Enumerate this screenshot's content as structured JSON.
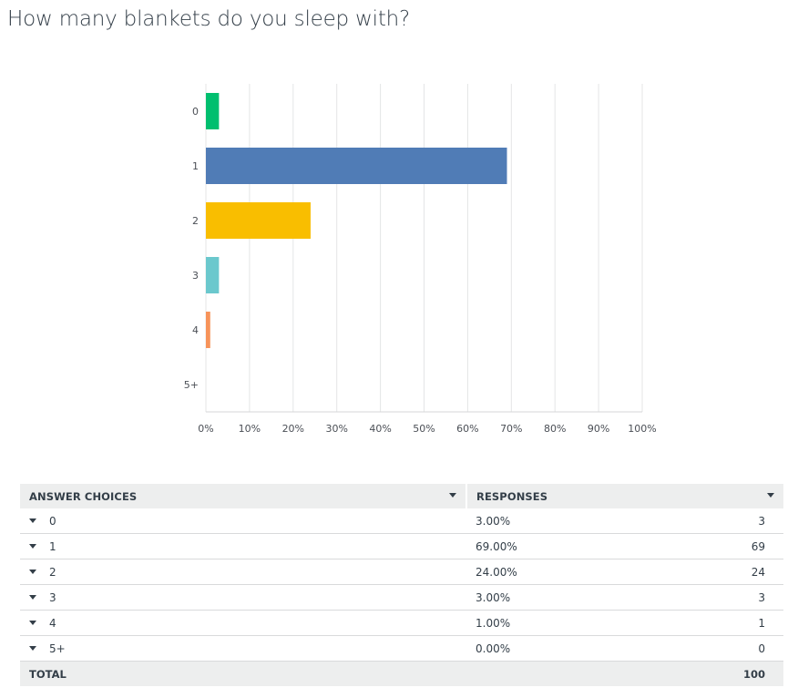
{
  "question": "How many blankets do you sleep with?",
  "chart_data": {
    "type": "bar",
    "orientation": "horizontal",
    "categories": [
      "0",
      "1",
      "2",
      "3",
      "4",
      "5+"
    ],
    "values": [
      3,
      69,
      24,
      3,
      1,
      0
    ],
    "colors": [
      "#00bf6f",
      "#507cb6",
      "#f9be00",
      "#6bc8cd",
      "#f7935a",
      "#9d9d9d"
    ],
    "xlim": [
      0,
      100
    ],
    "x_ticks": [
      "0%",
      "10%",
      "20%",
      "30%",
      "40%",
      "50%",
      "60%",
      "70%",
      "80%",
      "90%",
      "100%"
    ],
    "grid": true,
    "gridline_color": "#e4e5e6"
  },
  "table": {
    "headers": {
      "choices": "ANSWER CHOICES",
      "responses": "RESPONSES"
    },
    "rows": [
      {
        "choice": "0",
        "percent": "3.00%",
        "count": "3"
      },
      {
        "choice": "1",
        "percent": "69.00%",
        "count": "69"
      },
      {
        "choice": "2",
        "percent": "24.00%",
        "count": "24"
      },
      {
        "choice": "3",
        "percent": "3.00%",
        "count": "3"
      },
      {
        "choice": "4",
        "percent": "1.00%",
        "count": "1"
      },
      {
        "choice": "5+",
        "percent": "0.00%",
        "count": "0"
      }
    ],
    "total_label": "TOTAL",
    "total_count": "100"
  }
}
